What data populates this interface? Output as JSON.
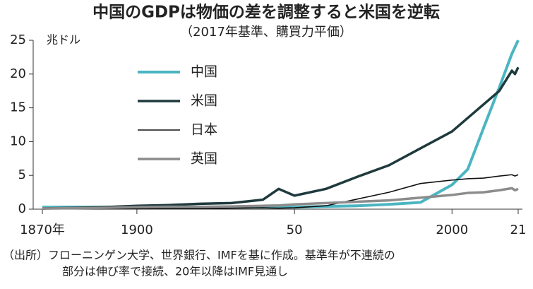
{
  "chart_data": {
    "type": "line",
    "title": "中国のGDPは物価の差を調整すると米国を逆転",
    "subtitle": "（2017年基準、購買力平価）",
    "y_label": "兆ドル",
    "x": [
      1870,
      1880,
      1890,
      1900,
      1910,
      1920,
      1930,
      1940,
      1945,
      1950,
      1960,
      1970,
      1980,
      1990,
      2000,
      2005,
      2010,
      2015,
      2019,
      2020,
      2021
    ],
    "series": [
      {
        "name": "中国",
        "color": "#4bb5c1",
        "values": [
          0.3,
          0.3,
          0.3,
          0.3,
          0.3,
          0.3,
          0.3,
          0.3,
          0.3,
          0.3,
          0.4,
          0.5,
          0.7,
          1.0,
          3.6,
          5.9,
          12.0,
          18.0,
          23.0,
          24.0,
          25.0
        ]
      },
      {
        "name": "米国",
        "color": "#1f3a3d",
        "values": [
          0.1,
          0.2,
          0.3,
          0.5,
          0.6,
          0.8,
          0.9,
          1.4,
          3.0,
          2.0,
          3.0,
          4.8,
          6.5,
          9.0,
          11.5,
          13.5,
          15.5,
          17.5,
          20.5,
          20.0,
          21.0
        ]
      },
      {
        "name": "日本",
        "color": "#111111",
        "values": [
          0.02,
          0.03,
          0.04,
          0.06,
          0.08,
          0.1,
          0.15,
          0.2,
          0.15,
          0.2,
          0.5,
          1.5,
          2.5,
          3.8,
          4.3,
          4.5,
          4.6,
          4.9,
          5.1,
          4.9,
          5.1
        ]
      },
      {
        "name": "英国",
        "color": "#8c8c8c",
        "values": [
          0.1,
          0.15,
          0.2,
          0.3,
          0.35,
          0.35,
          0.4,
          0.5,
          0.55,
          0.7,
          0.9,
          1.1,
          1.3,
          1.7,
          2.1,
          2.4,
          2.5,
          2.8,
          3.1,
          2.8,
          3.0
        ]
      }
    ],
    "xlim": [
      1870,
      2021
    ],
    "xticks": [
      {
        "value": 1870,
        "label": "1870年"
      },
      1900,
      {
        "value": 1950,
        "label": "50"
      },
      2000,
      {
        "value": 2021,
        "label": "21"
      }
    ],
    "ylim": [
      0,
      25
    ],
    "yticks": [
      0,
      5,
      10,
      15,
      20,
      25
    ],
    "grid": false,
    "legend": "upper left",
    "source": [
      "（出所）フローニンゲン大学、世界銀行、IMFを基に作成。基準年が不連続の",
      "部分は伸び率で接続、20年以降はIMF見通し"
    ]
  }
}
